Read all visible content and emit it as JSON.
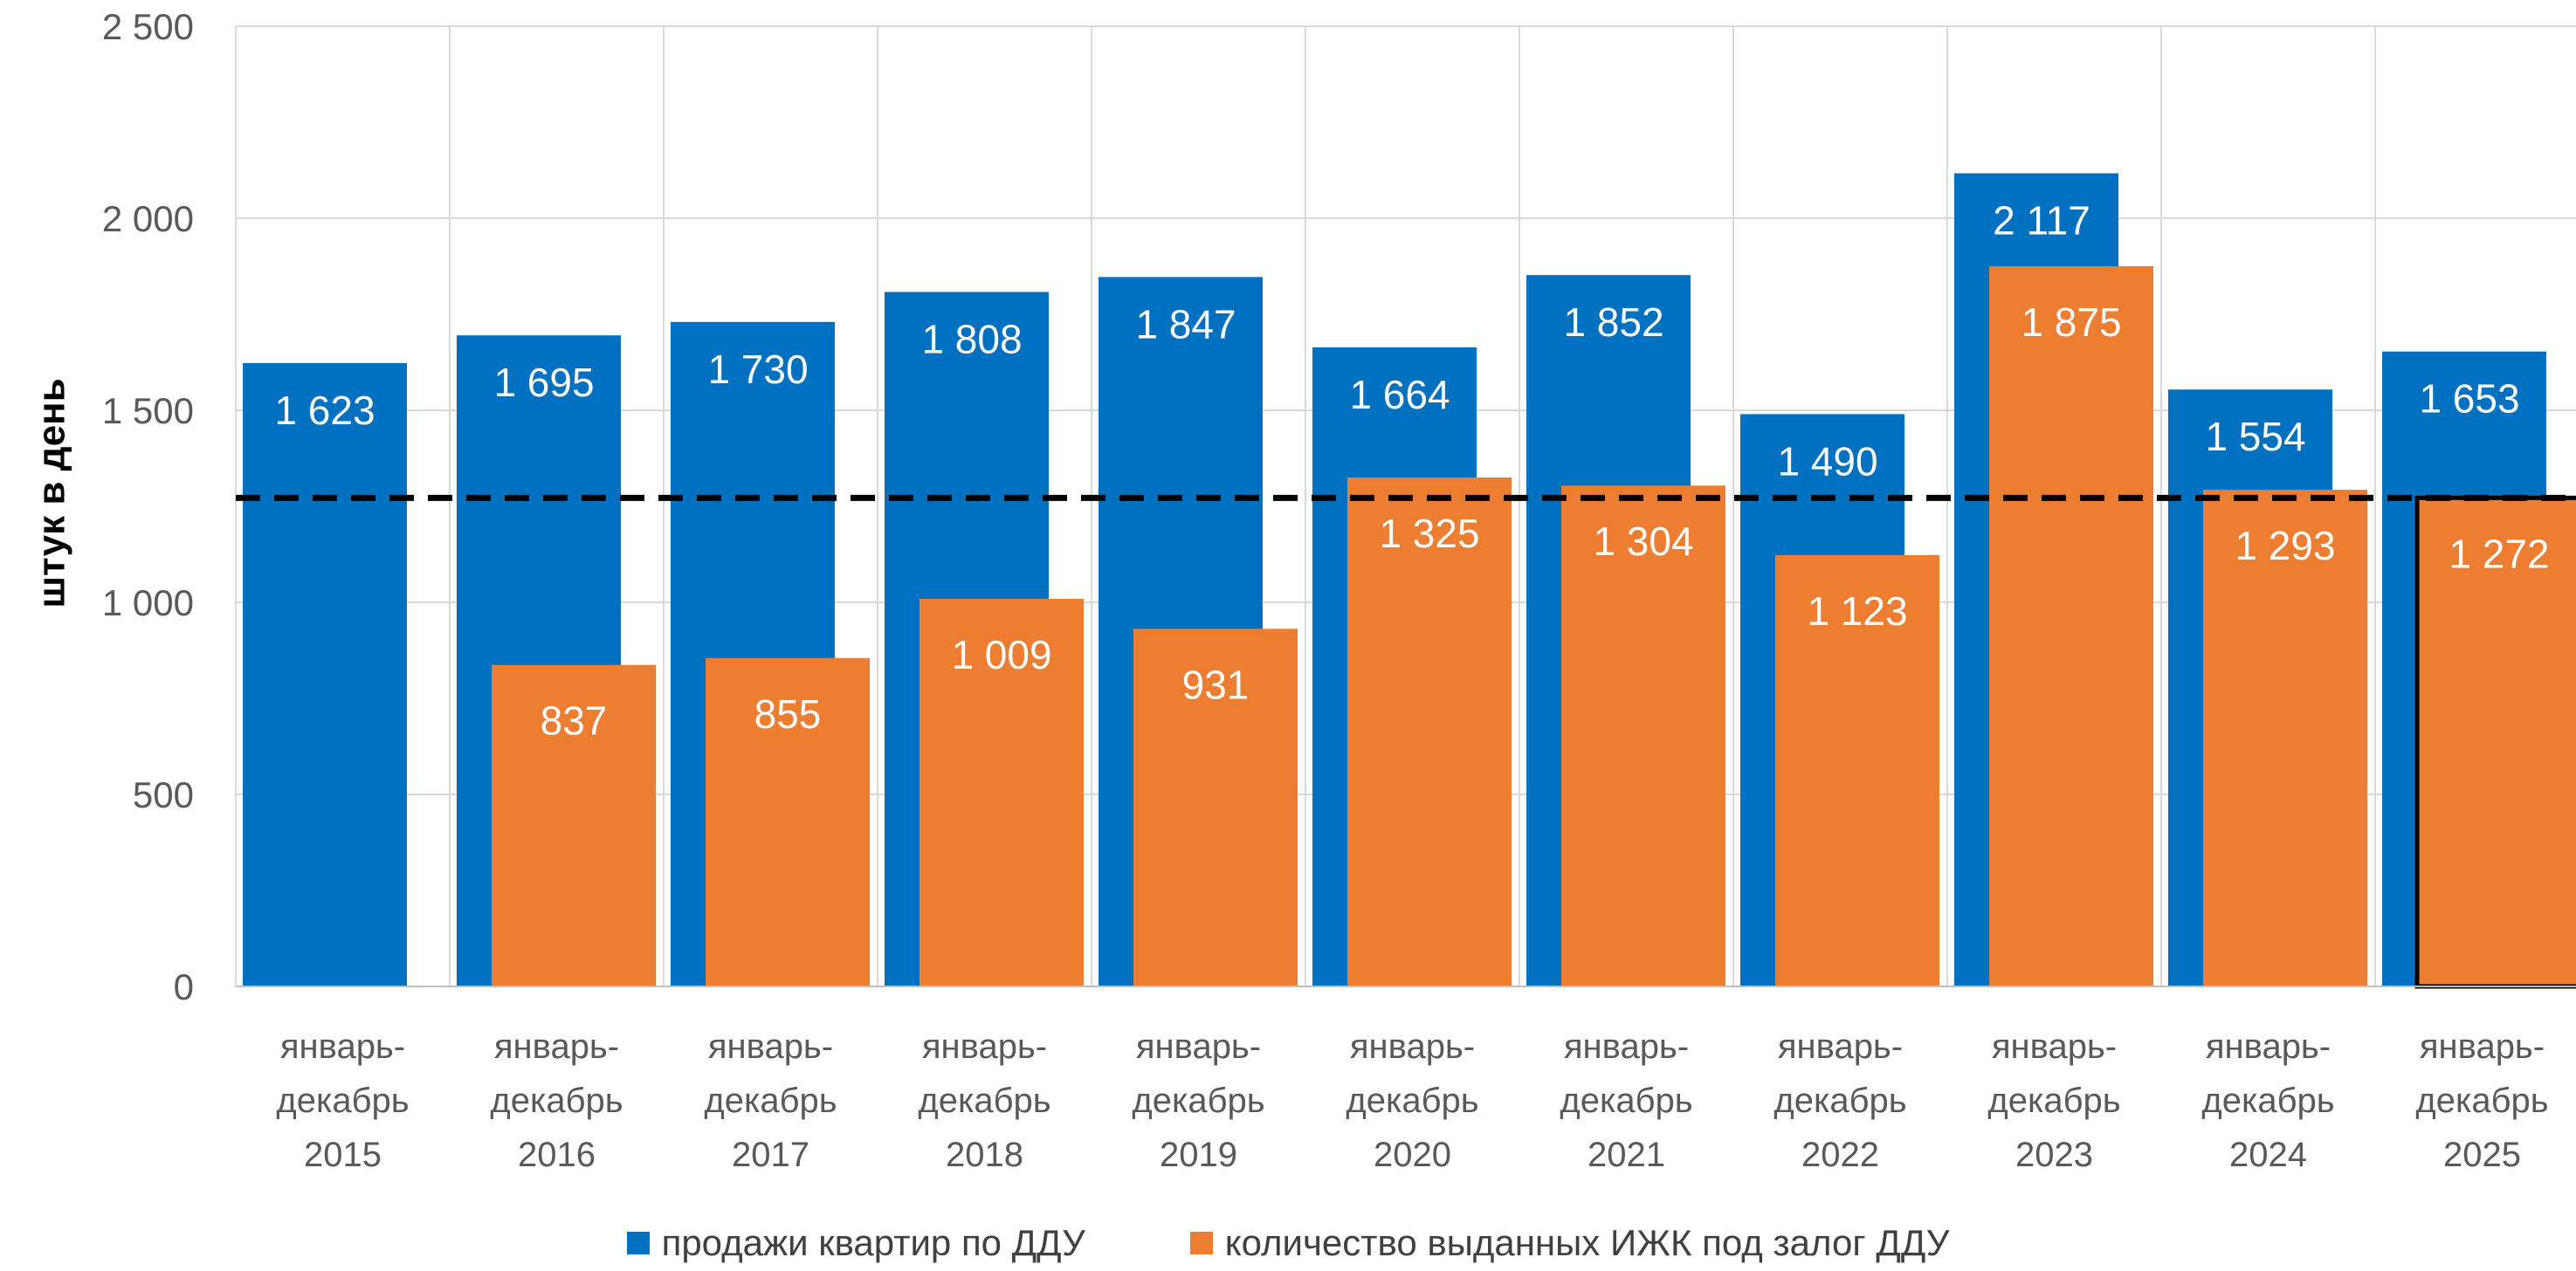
{
  "chart_data": {
    "type": "bar",
    "ylabel": "штук в день",
    "ylim": [
      0,
      2500
    ],
    "yticks": [
      "0",
      "500",
      "1 000",
      "1 500",
      "2 000",
      "2 500"
    ],
    "ytick_values": [
      0,
      500,
      1000,
      1500,
      2000,
      2500
    ],
    "categories": [
      [
        "январь-",
        "декабрь",
        "2015"
      ],
      [
        "январь-",
        "декабрь",
        "2016"
      ],
      [
        "январь-",
        "декабрь",
        "2017"
      ],
      [
        "январь-",
        "декабрь",
        "2018"
      ],
      [
        "январь-",
        "декабрь",
        "2019"
      ],
      [
        "январь-",
        "декабрь",
        "2020"
      ],
      [
        "январь-",
        "декабрь",
        "2021"
      ],
      [
        "январь-",
        "декабрь",
        "2022"
      ],
      [
        "январь-",
        "декабрь",
        "2023"
      ],
      [
        "январь-",
        "декабрь",
        "2024"
      ],
      [
        "январь-",
        "декабрь",
        "2025"
      ]
    ],
    "series": [
      {
        "name": "продажи квартир по ДДУ",
        "color": "#0070C0",
        "values": [
          1623,
          1695,
          1730,
          1808,
          1847,
          1664,
          1852,
          1490,
          2117,
          1554,
          1653
        ],
        "labels": [
          "1 623",
          "1 695",
          "1 730",
          "1 808",
          "1 847",
          "1 664",
          "1 852",
          "1 490",
          "2 117",
          "1 554",
          "1 653"
        ]
      },
      {
        "name": "количество выданных ИЖК под залог ДДУ",
        "color": "#ED7D31",
        "values": [
          null,
          837,
          855,
          1009,
          931,
          1325,
          1304,
          1123,
          1875,
          1293,
          1272
        ],
        "labels": [
          "",
          "837",
          "855",
          "1 009",
          "931",
          "1 325",
          "1 304",
          "1 123",
          "1 875",
          "1 293",
          "1 272"
        ]
      }
    ],
    "reference_line": {
      "value": 1272,
      "style": "dashed",
      "color": "#000000"
    },
    "highlighted_bar": {
      "series": 1,
      "category_index": 10,
      "outline": "#000000"
    },
    "grid": true,
    "gridline_color": "#D9D9D9",
    "legend_position": "bottom"
  }
}
